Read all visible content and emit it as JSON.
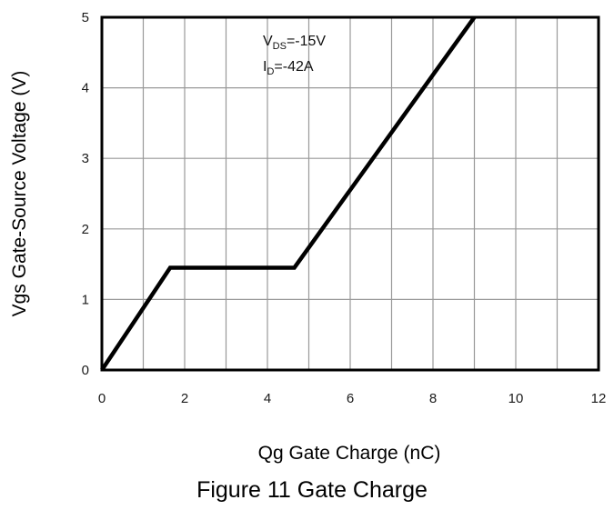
{
  "chart_data": {
    "type": "line",
    "title": "",
    "caption": "Figure 11 Gate Charge",
    "xlabel": "Qg Gate Charge (nC)",
    "ylabel": "Vgs Gate-Source Voltage (V)",
    "xlim": [
      0,
      12
    ],
    "ylim": [
      0,
      5
    ],
    "x_ticks": [
      "0",
      "2",
      "4",
      "6",
      "8",
      "10",
      "12"
    ],
    "y_ticks": [
      "0",
      "1",
      "2",
      "3",
      "4",
      "5"
    ],
    "grid": true,
    "grid_step_x": 1,
    "grid_step_y": 1,
    "series": [
      {
        "x": [
          0,
          1.65,
          4.65,
          9.0
        ],
        "y": [
          0,
          1.45,
          1.45,
          5.0
        ]
      }
    ],
    "annotations": [
      {
        "main": "V",
        "sub": "DS",
        "rest": "=-15V"
      },
      {
        "main": "I",
        "sub": "D",
        "rest": "=-42A"
      }
    ],
    "line_color": "#000000",
    "grid_color": "#999999"
  }
}
